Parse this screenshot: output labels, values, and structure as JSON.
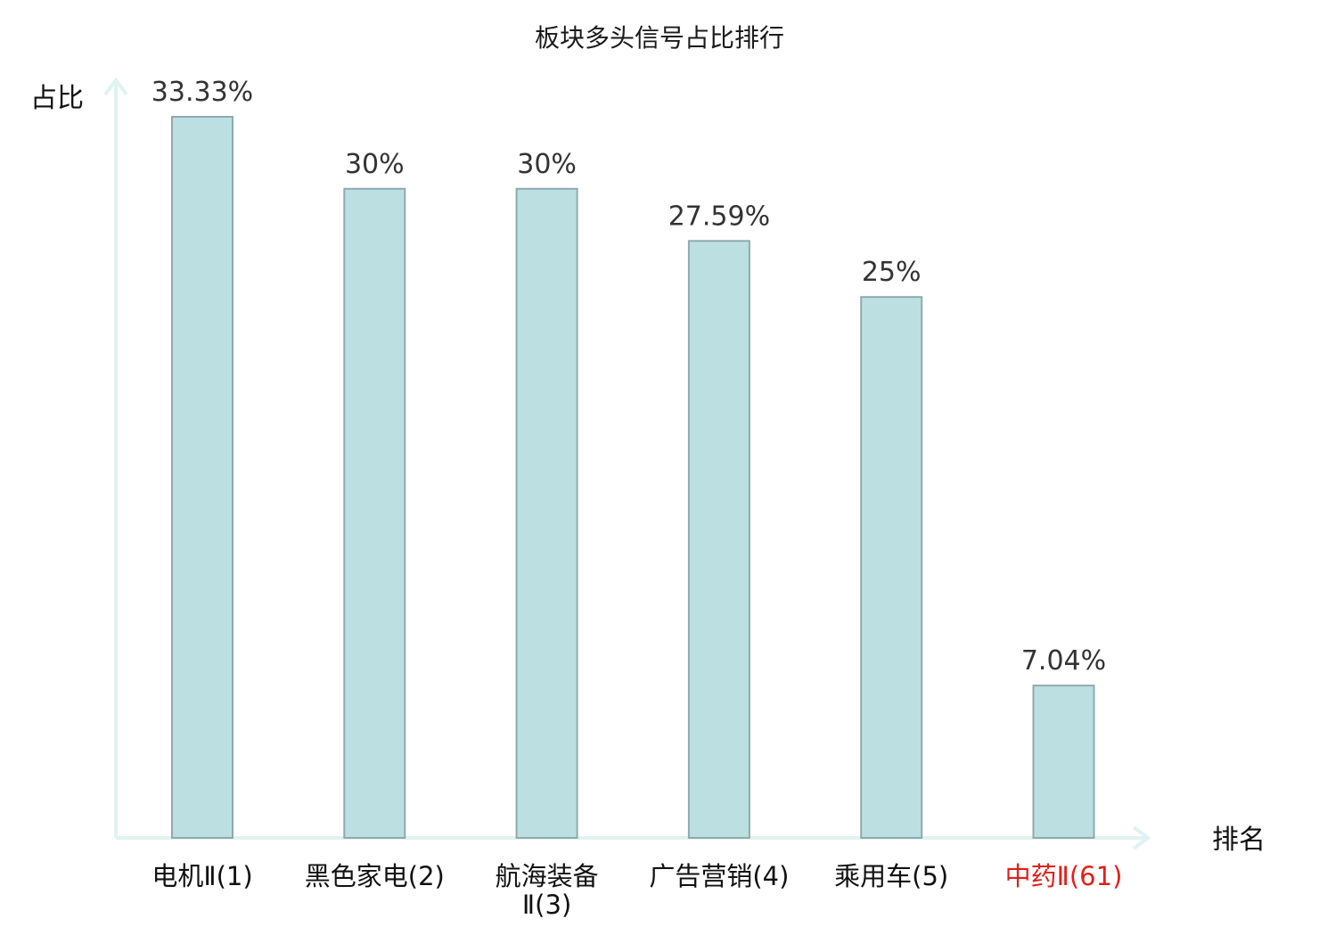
{
  "chart_data": {
    "type": "bar",
    "title": "板块多头信号占比排行",
    "ylabel": "占比",
    "xlabel": "排名",
    "categories": [
      [
        "电机Ⅱ(1)"
      ],
      [
        "黑色家电(2)"
      ],
      [
        "航海装备",
        "Ⅱ(3)"
      ],
      [
        "广告营销(4)"
      ],
      [
        "乘用车(5)"
      ],
      [
        "中药Ⅱ(61)"
      ]
    ],
    "values": [
      33.33,
      30,
      30,
      27.59,
      25,
      7.04
    ],
    "value_labels": [
      "33.33%",
      "30%",
      "30%",
      "27.59%",
      "25%",
      "7.04%"
    ],
    "highlight_index": 5,
    "ylim": [
      0,
      35
    ],
    "grid": false,
    "colors": {
      "bar_fill": "#bce0e2",
      "bar_stroke": "#8faaad",
      "axis": "#e0f2f1",
      "highlight_label": "#e0201a"
    }
  }
}
